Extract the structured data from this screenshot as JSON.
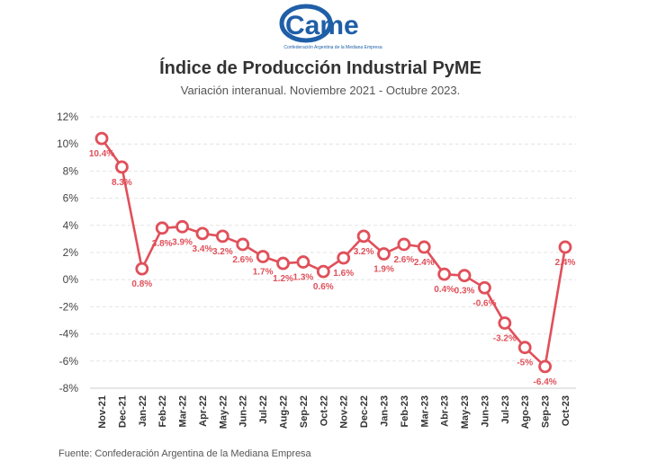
{
  "logo": {
    "wordmark": "Came",
    "caption": "Confederación Argentina de la Mediana Empresa",
    "color": "#1f5fa8"
  },
  "chart_data": {
    "type": "line",
    "title": "Índice de Producción Industrial PyME",
    "subtitle": "Variación interanual. Noviembre 2021 - Octubre 2023.",
    "source": "Fuente: Confederación Argentina de la Mediana Empresa",
    "categories": [
      "Nov-21",
      "Dec-21",
      "Jan-22",
      "Feb-22",
      "Mar-22",
      "Apr-22",
      "May-22",
      "Jun-22",
      "Jul-22",
      "Aug-22",
      "Sep-22",
      "Oct-22",
      "Nov-22",
      "Dec-22",
      "Jan-23",
      "Feb-23",
      "Mar-23",
      "Abr-23",
      "May-23",
      "Jun-23",
      "Jul-23",
      "Ago-23",
      "Sep-23",
      "Oct-23"
    ],
    "values": [
      10.4,
      8.3,
      0.8,
      3.8,
      3.9,
      3.4,
      3.2,
      2.6,
      1.7,
      1.2,
      1.3,
      0.6,
      1.6,
      3.2,
      1.9,
      2.6,
      2.4,
      0.4,
      0.3,
      -0.6,
      -3.2,
      -5,
      -6.4,
      2.4
    ],
    "data_labels": [
      "10.4%",
      "8.3%",
      "0.8%",
      "3.8%",
      "3.9%",
      "3.4%",
      "3.2%",
      "2.6%",
      "1.7%",
      "1.2%",
      "1.3%",
      "0.6%",
      "1.6%",
      "3.2%",
      "1.9%",
      "2.6%",
      "2.4%",
      "0.4%",
      "0.3%",
      "-0.6%",
      "-3.2%",
      "-5%",
      "-6.4%",
      "2.4%"
    ],
    "y_ticks": [
      "12%",
      "10%",
      "8%",
      "6%",
      "4%",
      "2%",
      "0%",
      "-2%",
      "-4%",
      "-6%",
      "-8%"
    ],
    "y_tick_values": [
      12,
      10,
      8,
      6,
      4,
      2,
      0,
      -2,
      -4,
      -6,
      -8
    ],
    "ylim": [
      -8,
      12
    ],
    "grid": true,
    "line_color": "#e0505a"
  }
}
